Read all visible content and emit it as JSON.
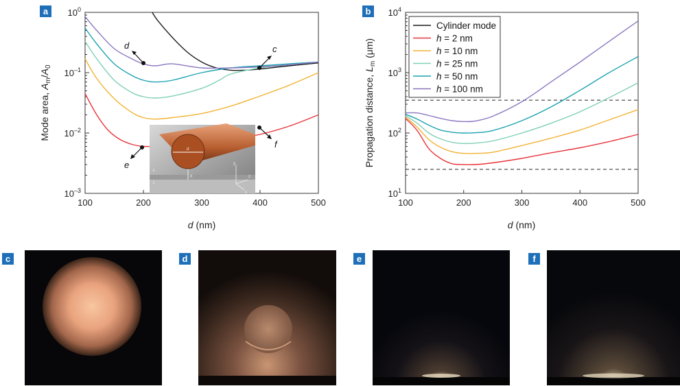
{
  "panels": {
    "a": "a",
    "b": "b",
    "c": "c",
    "d": "d",
    "e": "e",
    "f": "f"
  },
  "panel_a_annotations": {
    "c": "c",
    "d": "d",
    "e": "e",
    "f": "f"
  },
  "inset_labels": {
    "d": "d",
    "h": "h",
    "y": "y",
    "z": "z",
    "x": "x",
    "eps_c": "ε",
    "eps_d": "ε",
    "eps_m": "ε"
  },
  "colors": {
    "cylinder": "#1a1a1a",
    "h2": "#e8333a",
    "h10": "#f2b233",
    "h25": "#7fcfb6",
    "h50": "#1aa2b0",
    "h100": "#8a77c0",
    "badge": "#1e6fb8"
  },
  "chart_data": [
    {
      "panel": "a",
      "type": "line",
      "xlabel": "d (nm)",
      "ylabel": "Mode area, Am/A0",
      "xlim": [
        100,
        500
      ],
      "ylim": [
        0.001,
        1
      ],
      "yscale": "log",
      "xticks": [
        "100",
        "200",
        "300",
        "400",
        "500"
      ],
      "yticks": [
        "10^-3",
        "10^-2",
        "10^-1",
        "10^0"
      ],
      "series": [
        {
          "name": "Cylinder mode",
          "x": [
            215,
            225,
            250,
            275,
            300,
            325,
            350,
            375,
            400,
            450,
            500
          ],
          "y": [
            1.0,
            0.72,
            0.38,
            0.22,
            0.15,
            0.12,
            0.11,
            0.11,
            0.115,
            0.13,
            0.145
          ]
        },
        {
          "name": "h = 2 nm",
          "x": [
            100,
            120,
            140,
            160,
            180,
            200,
            220,
            250,
            300,
            350,
            400,
            450,
            500
          ],
          "y": [
            0.045,
            0.02,
            0.011,
            0.0078,
            0.0065,
            0.006,
            0.006,
            0.0062,
            0.0068,
            0.0078,
            0.0095,
            0.013,
            0.02
          ]
        },
        {
          "name": "h = 10 nm",
          "x": [
            100,
            120,
            150,
            180,
            200,
            220,
            250,
            300,
            350,
            400,
            450,
            500
          ],
          "y": [
            0.17,
            0.08,
            0.037,
            0.022,
            0.018,
            0.017,
            0.018,
            0.021,
            0.028,
            0.041,
            0.062,
            0.1
          ]
        },
        {
          "name": "h = 25 nm",
          "x": [
            100,
            120,
            150,
            180,
            200,
            220,
            250,
            300,
            330,
            350,
            400,
            450,
            500
          ],
          "y": [
            0.33,
            0.17,
            0.075,
            0.047,
            0.04,
            0.038,
            0.041,
            0.055,
            0.075,
            0.095,
            0.12,
            0.135,
            0.15
          ]
        },
        {
          "name": "h = 50 nm",
          "x": [
            100,
            120,
            150,
            180,
            200,
            220,
            250,
            300,
            350,
            400,
            450,
            500
          ],
          "y": [
            0.55,
            0.3,
            0.14,
            0.09,
            0.075,
            0.07,
            0.075,
            0.1,
            0.12,
            0.13,
            0.14,
            0.15
          ]
        },
        {
          "name": "h = 100 nm",
          "x": [
            100,
            120,
            150,
            180,
            200,
            220,
            250,
            300,
            350,
            400,
            450,
            500
          ],
          "y": [
            0.85,
            0.5,
            0.25,
            0.17,
            0.14,
            0.13,
            0.14,
            0.12,
            0.12,
            0.125,
            0.135,
            0.15
          ]
        }
      ]
    },
    {
      "panel": "b",
      "type": "line",
      "xlabel": "d (nm)",
      "ylabel": "Propagation distance, Lm (μm)",
      "xlim": [
        100,
        500
      ],
      "ylim": [
        10,
        10000
      ],
      "yscale": "log",
      "xticks": [
        "100",
        "200",
        "300",
        "400",
        "500"
      ],
      "yticks": [
        "10^1",
        "10^2",
        "10^3",
        "10^4"
      ],
      "legend_position": "top-left",
      "legend": [
        "Cylinder mode",
        "h = 2 nm",
        "h = 10 nm",
        "h = 25 nm",
        "h = 50 nm",
        "h = 100 nm"
      ],
      "dashed_lines_y": [
        350,
        25
      ],
      "series": [
        {
          "name": "h = 2 nm",
          "x": [
            100,
            120,
            140,
            160,
            180,
            200,
            220,
            250,
            300,
            350,
            400,
            450,
            500
          ],
          "y": [
            175,
            110,
            55,
            38,
            31,
            30,
            30,
            32,
            38,
            47,
            57,
            72,
            95
          ]
        },
        {
          "name": "h = 10 nm",
          "x": [
            100,
            120,
            140,
            160,
            180,
            200,
            220,
            250,
            300,
            350,
            400,
            450,
            500
          ],
          "y": [
            185,
            125,
            78,
            58,
            49,
            46,
            46,
            48,
            62,
            82,
            112,
            165,
            245
          ]
        },
        {
          "name": "h = 25 nm",
          "x": [
            100,
            120,
            140,
            160,
            180,
            200,
            220,
            250,
            300,
            350,
            400,
            450,
            500
          ],
          "y": [
            195,
            145,
            100,
            80,
            70,
            67,
            68,
            74,
            100,
            145,
            225,
            385,
            680
          ]
        },
        {
          "name": "h = 50 nm",
          "x": [
            100,
            120,
            140,
            160,
            180,
            200,
            220,
            250,
            300,
            350,
            400,
            450,
            500
          ],
          "y": [
            205,
            170,
            135,
            112,
            103,
            100,
            101,
            110,
            160,
            270,
            510,
            1000,
            1850
          ]
        },
        {
          "name": "h = 100 nm",
          "x": [
            100,
            120,
            140,
            160,
            180,
            200,
            220,
            250,
            300,
            350,
            400,
            450,
            500
          ],
          "y": [
            215,
            215,
            195,
            175,
            160,
            155,
            158,
            190,
            330,
            700,
            1500,
            3300,
            7200
          ]
        }
      ]
    }
  ]
}
